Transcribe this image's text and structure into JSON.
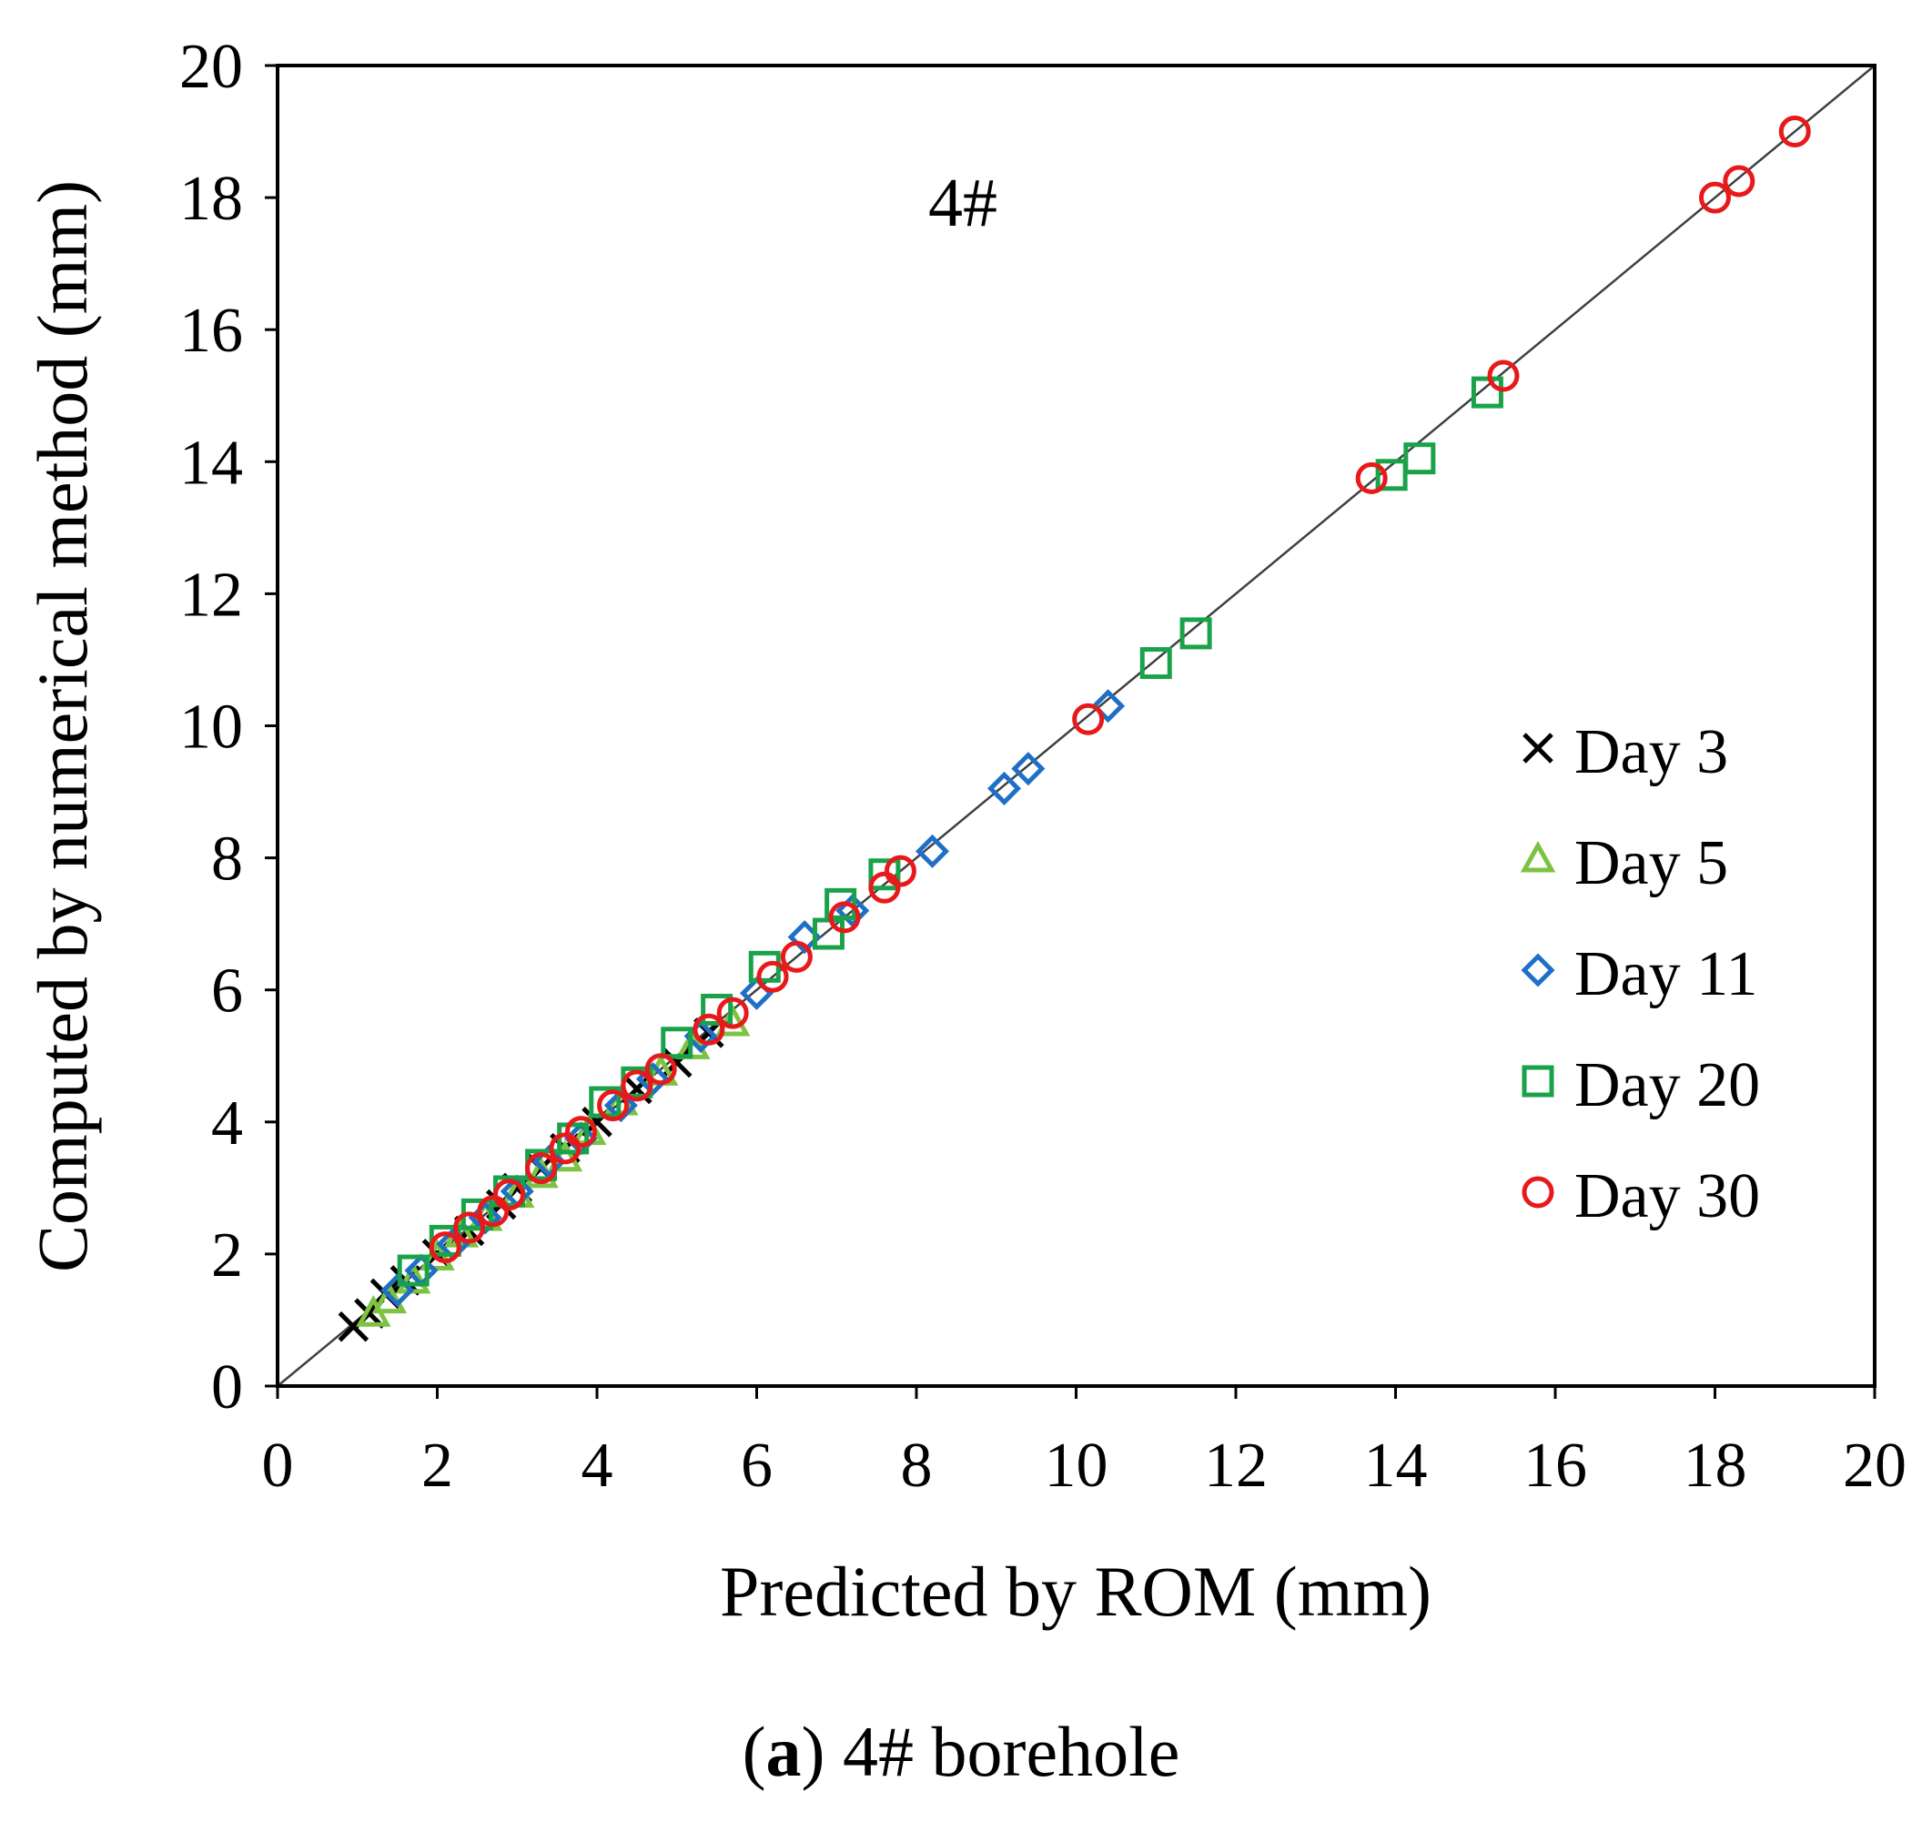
{
  "chart_data": {
    "type": "scatter",
    "title": "",
    "annotation": "4#",
    "xlabel": "Predicted by ROM (mm)",
    "ylabel": "Computed by numerical method (mm)",
    "xlim": [
      0,
      20
    ],
    "ylim": [
      0,
      20
    ],
    "xticks": [
      "0",
      "2",
      "4",
      "6",
      "8",
      "10",
      "12",
      "14",
      "16",
      "18",
      "20"
    ],
    "yticks": [
      "0",
      "2",
      "4",
      "6",
      "8",
      "10",
      "12",
      "14",
      "16",
      "18",
      "20"
    ],
    "grid": false,
    "reference_line": {
      "x": [
        0,
        20
      ],
      "y": [
        0,
        20
      ],
      "color": "#404040"
    },
    "legend_position": "right",
    "series": [
      {
        "name": "Day 3",
        "marker": "x",
        "color": "#000000",
        "x": [
          0.95,
          1.15,
          1.35,
          1.6,
          2.0,
          2.4,
          2.8,
          3.0,
          3.3,
          3.6,
          4.0,
          4.5,
          5.0,
          5.4
        ],
        "y": [
          0.9,
          1.1,
          1.4,
          1.6,
          2.0,
          2.35,
          2.75,
          3.0,
          3.3,
          3.6,
          4.0,
          4.5,
          4.9,
          5.35
        ]
      },
      {
        "name": "Day 5",
        "marker": "triangle",
        "color": "#7dc242",
        "x": [
          1.2,
          1.4,
          1.7,
          2.0,
          2.3,
          2.6,
          3.0,
          3.3,
          3.6,
          3.9,
          4.3,
          4.8,
          5.2,
          5.7
        ],
        "y": [
          1.1,
          1.3,
          1.6,
          1.95,
          2.3,
          2.55,
          2.9,
          3.2,
          3.45,
          3.85,
          4.3,
          4.75,
          5.15,
          5.5
        ]
      },
      {
        "name": "Day 11",
        "marker": "diamond",
        "color": "#1f6fc6",
        "x": [
          1.5,
          1.8,
          2.2,
          2.6,
          3.0,
          3.4,
          3.8,
          4.3,
          4.7,
          5.3,
          6.0,
          6.6,
          7.2,
          8.2,
          9.1,
          9.4,
          10.4
        ],
        "y": [
          1.45,
          1.75,
          2.15,
          2.55,
          2.95,
          3.4,
          3.75,
          4.25,
          4.65,
          5.3,
          5.95,
          6.8,
          7.2,
          8.1,
          9.05,
          9.35,
          10.3
        ]
      },
      {
        "name": "Day 20",
        "marker": "square",
        "color": "#1aa24a",
        "x": [
          1.7,
          2.1,
          2.5,
          2.9,
          3.3,
          3.7,
          4.1,
          4.5,
          5.0,
          5.5,
          6.1,
          6.9,
          7.05,
          7.6,
          11.0,
          11.5,
          13.95,
          14.3,
          15.15
        ],
        "y": [
          1.75,
          2.2,
          2.6,
          2.95,
          3.35,
          3.75,
          4.3,
          4.6,
          5.2,
          5.7,
          6.35,
          6.85,
          7.3,
          7.75,
          10.95,
          11.4,
          13.8,
          14.05,
          15.05
        ]
      },
      {
        "name": "Day 30",
        "marker": "circle",
        "color": "#e8191b",
        "x": [
          2.1,
          2.4,
          2.7,
          2.9,
          3.3,
          3.6,
          3.8,
          4.2,
          4.5,
          4.8,
          5.4,
          5.7,
          6.2,
          6.5,
          7.1,
          7.6,
          7.8,
          10.15,
          13.7,
          15.35,
          18.0,
          18.3,
          19.0
        ],
        "y": [
          2.1,
          2.4,
          2.65,
          2.9,
          3.3,
          3.6,
          3.85,
          4.25,
          4.55,
          4.8,
          5.4,
          5.65,
          6.2,
          6.5,
          7.1,
          7.55,
          7.8,
          10.1,
          13.75,
          15.3,
          18.0,
          18.25,
          19.0
        ]
      }
    ]
  },
  "caption": {
    "label": "a",
    "text": "4# borehole"
  }
}
